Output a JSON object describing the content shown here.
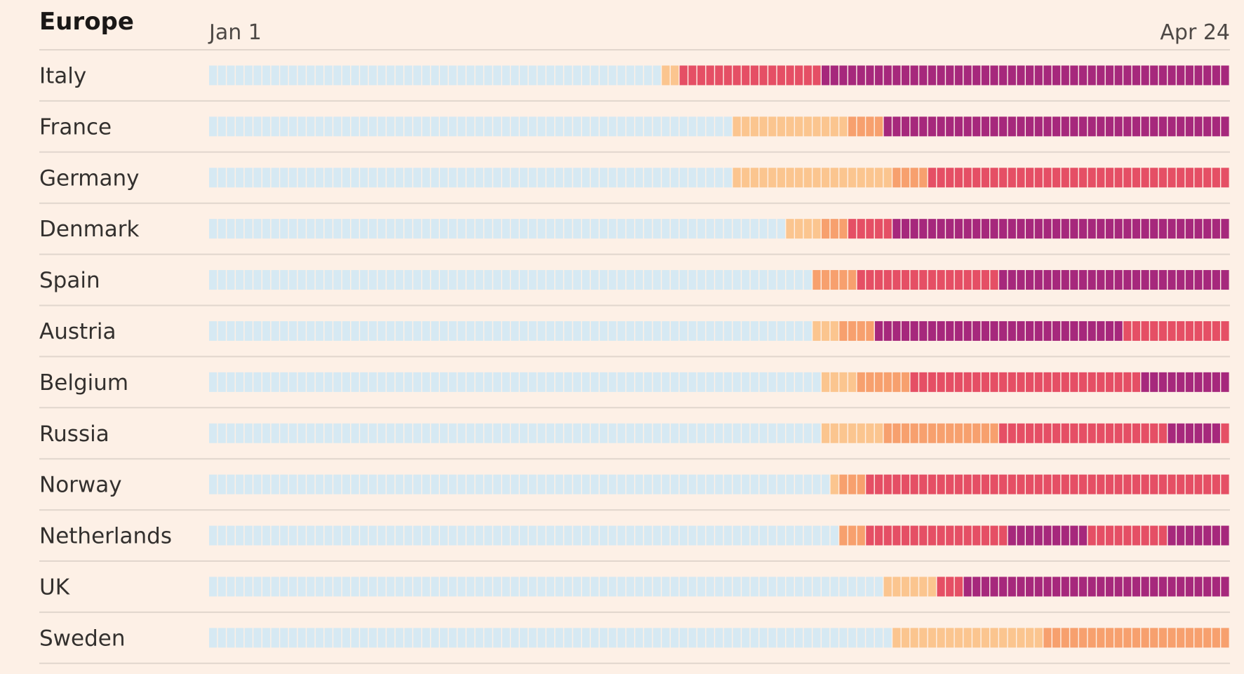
{
  "chart_data": {
    "type": "heatmap",
    "title": "Europe",
    "x_start_label": "Jan 1",
    "x_end_label": "Apr 24",
    "days": 115,
    "levels": [
      {
        "level": 0,
        "color": "#d6e9f3"
      },
      {
        "level": 1,
        "color": "#fbc58f"
      },
      {
        "level": 2,
        "color": "#f7a06e"
      },
      {
        "level": 3,
        "color": "#e54f65"
      },
      {
        "level": 4,
        "color": "#a6287c"
      }
    ],
    "rows": [
      {
        "name": "Italy",
        "segments": [
          [
            0,
            51
          ],
          [
            1,
            2
          ],
          [
            3,
            16
          ],
          [
            4,
            46
          ]
        ]
      },
      {
        "name": "France",
        "segments": [
          [
            0,
            59
          ],
          [
            1,
            13
          ],
          [
            2,
            4
          ],
          [
            4,
            39
          ]
        ]
      },
      {
        "name": "Germany",
        "segments": [
          [
            0,
            59
          ],
          [
            1,
            18
          ],
          [
            2,
            4
          ],
          [
            3,
            34
          ]
        ]
      },
      {
        "name": "Denmark",
        "segments": [
          [
            0,
            65
          ],
          [
            1,
            4
          ],
          [
            2,
            3
          ],
          [
            3,
            5
          ],
          [
            4,
            38
          ]
        ]
      },
      {
        "name": "Spain",
        "segments": [
          [
            0,
            68
          ],
          [
            2,
            5
          ],
          [
            3,
            16
          ],
          [
            4,
            26
          ]
        ]
      },
      {
        "name": "Austria",
        "segments": [
          [
            0,
            68
          ],
          [
            1,
            3
          ],
          [
            2,
            4
          ],
          [
            4,
            28
          ],
          [
            3,
            12
          ]
        ]
      },
      {
        "name": "Belgium",
        "segments": [
          [
            0,
            69
          ],
          [
            1,
            4
          ],
          [
            2,
            6
          ],
          [
            3,
            26
          ],
          [
            4,
            10
          ]
        ]
      },
      {
        "name": "Russia",
        "segments": [
          [
            0,
            69
          ],
          [
            1,
            7
          ],
          [
            2,
            13
          ],
          [
            3,
            19
          ],
          [
            4,
            6
          ],
          [
            3,
            1
          ]
        ]
      },
      {
        "name": "Norway",
        "segments": [
          [
            0,
            70
          ],
          [
            1,
            1
          ],
          [
            2,
            3
          ],
          [
            3,
            41
          ]
        ]
      },
      {
        "name": "Netherlands",
        "segments": [
          [
            0,
            71
          ],
          [
            2,
            3
          ],
          [
            3,
            16
          ],
          [
            4,
            9
          ],
          [
            3,
            9
          ],
          [
            4,
            7
          ]
        ]
      },
      {
        "name": "UK",
        "segments": [
          [
            0,
            76
          ],
          [
            1,
            6
          ],
          [
            3,
            3
          ],
          [
            4,
            30
          ]
        ]
      },
      {
        "name": "Sweden",
        "segments": [
          [
            0,
            77
          ],
          [
            1,
            17
          ],
          [
            2,
            21
          ]
        ]
      }
    ]
  }
}
